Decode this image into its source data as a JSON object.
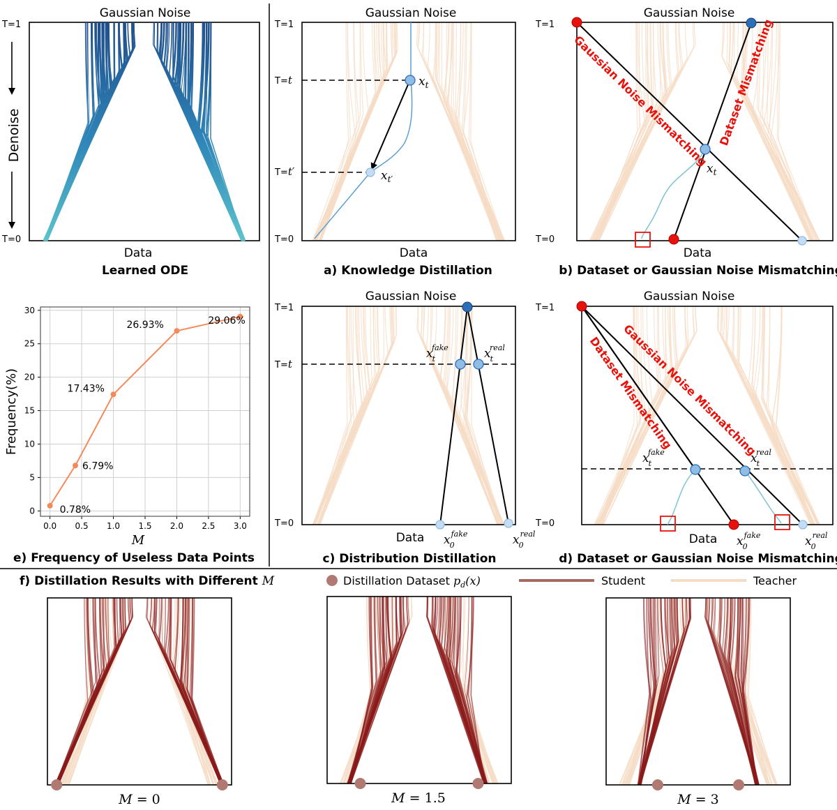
{
  "colors": {
    "teacher": "#f5dcc6",
    "student": "#8b1a1a",
    "student_legend": "#a86a62",
    "dataset_dot": "#b07a72",
    "ode_top": "#1f4e8c",
    "ode_bottom": "#5cc3cc",
    "mismatch_red": "#e8120c",
    "chart_line": "#f4895a",
    "point_light": "#c6dcf2",
    "point_mid": "#8fbde6",
    "point_dark": "#2c6fb8"
  },
  "labels": {
    "gaussian_noise": "Gaussian Noise",
    "data": "Data",
    "t1": "T=1",
    "t0": "T=0",
    "denoise": "Denoise",
    "t_eq": "T=",
    "t_var": "t",
    "t_prime": "t′",
    "xt": "x",
    "sub_t": "t",
    "sub_tp": "t′",
    "sub_0": "0",
    "sup_fake": "fake",
    "sup_real": "real",
    "gn_mismatching": "Gaussian Noise Mismatching",
    "ds_mismatching": "Dataset Mismatching"
  },
  "captions": {
    "learned_ode": "Learned ODE",
    "a": "a) Knowledge Distillation",
    "b": "b) Dataset or Gaussian Noise Mismatching",
    "c": "c) Distribution Distillation",
    "d": "d) Dataset or Gaussian Noise Mismatching",
    "e": "e) Frequency of Useless Data Points",
    "f_prefix": "f) Distillation Results with Different ",
    "f_var": "M"
  },
  "legend": {
    "dataset": "Distillation Dataset ",
    "dataset_math": "p",
    "dataset_sub": "d",
    "dataset_arg": "(x)",
    "student": "Student",
    "teacher": "Teacher"
  },
  "f_panels": [
    {
      "m_label": "M",
      "m_value": "= 0"
    },
    {
      "m_label": "M",
      "m_value": "= 1.5"
    },
    {
      "m_label": "M",
      "m_value": "= 3"
    }
  ],
  "chart_data": {
    "type": "line",
    "xlabel": "M",
    "ylabel": "Frequency(%)",
    "xlim": [
      -0.15,
      3.15
    ],
    "ylim": [
      -0.8,
      30.5
    ],
    "xticks": [
      "0.0",
      "0.5",
      "1.0",
      "1.5",
      "2.0",
      "2.5",
      "3.0"
    ],
    "yticks": [
      "0",
      "5",
      "10",
      "15",
      "20",
      "25",
      "30"
    ],
    "grid": true,
    "x": [
      0.0,
      0.4,
      1.0,
      2.0,
      3.0
    ],
    "y": [
      0.78,
      6.79,
      17.43,
      26.93,
      29.06
    ],
    "data_labels": [
      "0.78%",
      "6.79%",
      "17.43%",
      "26.93%",
      "29.06%"
    ]
  }
}
